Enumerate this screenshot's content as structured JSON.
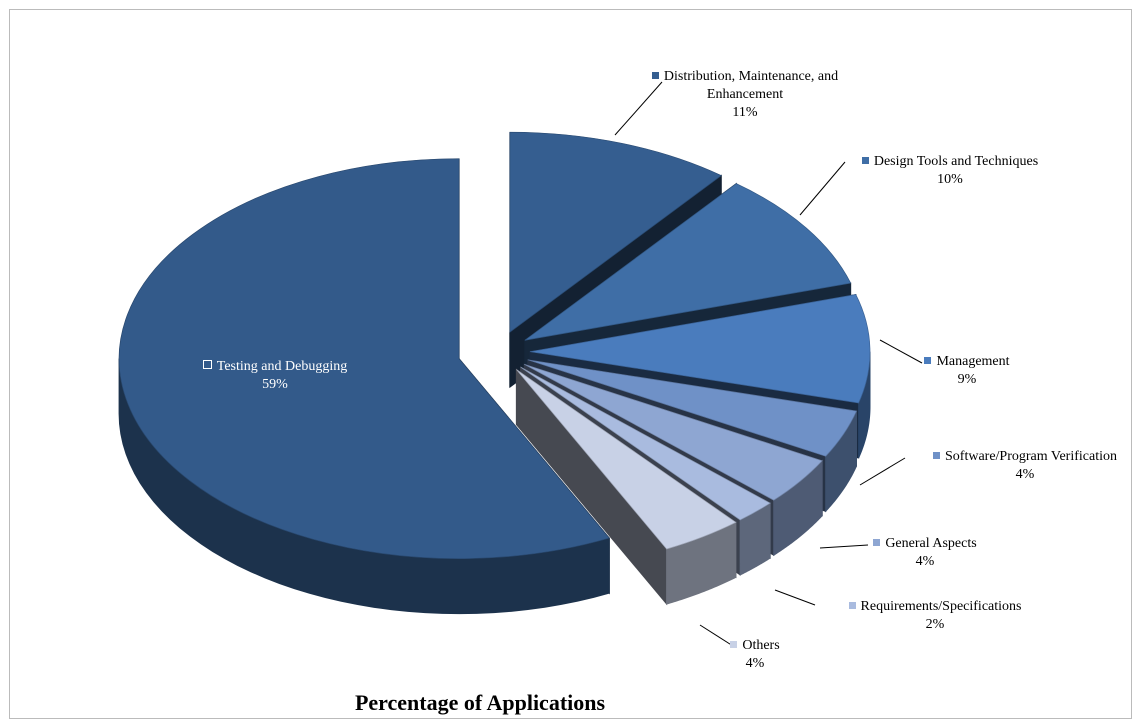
{
  "chart_data": {
    "type": "pie3d",
    "title": "Percentage of Applications",
    "categories": [
      "Testing and Debugging",
      "Distribution, Maintenance, and Enhancement",
      "Design Tools and Techniques",
      "Management",
      "Software/Program Verification",
      "General Aspects",
      "Requirements/Specifications",
      "Others"
    ],
    "values": [
      59,
      11,
      10,
      9,
      4,
      4,
      2,
      4
    ],
    "value_labels": [
      "59%",
      "11%",
      "10%",
      "9%",
      "4%",
      "4%",
      "2%",
      "4%"
    ],
    "colors": [
      "#335a8a",
      "#355e90",
      "#3f6ea6",
      "#4a7cbd",
      "#6f91c7",
      "#8ea6d2",
      "#a9bbdf",
      "#c8d1e6"
    ]
  }
}
